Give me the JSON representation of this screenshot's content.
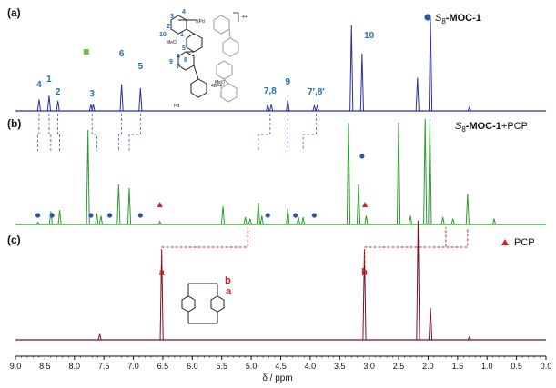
{
  "figure": {
    "panels": [
      {
        "id": "a",
        "label": "(a)",
        "legend_prefix": "S",
        "legend_sub": "8",
        "legend_suffix": "-MOC-1",
        "legend_marker": "blue-circle",
        "peak_labels": [
          {
            "text": "4",
            "ppm": 8.6
          },
          {
            "text": "1",
            "ppm": 8.43
          },
          {
            "text": "2",
            "ppm": 8.28
          },
          {
            "text": "3",
            "ppm": 7.7
          },
          {
            "text": "6",
            "ppm": 7.2
          },
          {
            "text": "5",
            "ppm": 6.88
          },
          {
            "text": "7,8",
            "ppm": 4.68
          },
          {
            "text": "9",
            "ppm": 4.38
          },
          {
            "text": "7′,8′",
            "ppm": 3.9
          },
          {
            "text": "10",
            "ppm": 3.0
          }
        ],
        "structure": {
          "charge": "4+",
          "counterion": "4BF4⁻",
          "metal": "Pd",
          "substituent": "MeO",
          "numbers": [
            "1",
            "2",
            "3",
            "4",
            "5",
            "6",
            "7",
            "8",
            "9",
            "10"
          ]
        }
      },
      {
        "id": "b",
        "label": "(b)",
        "legend_prefix": "S",
        "legend_sub": "8",
        "legend_suffix": "-MOC-1",
        "legend_extra": "+PCP"
      },
      {
        "id": "c",
        "label": "(c)",
        "legend_text": "PCP",
        "legend_marker": "red-triangle",
        "peak_labels": [
          {
            "text": "a",
            "ppm": 6.52
          },
          {
            "text": "b",
            "ppm": 3.08
          }
        ],
        "structure": {
          "labels": [
            "a",
            "b"
          ]
        }
      }
    ],
    "colors": {
      "panel_a": "#2a2fa0",
      "panel_b": "#2e9a2e",
      "panel_c": "#7a1020",
      "label_blue": "#1e6fb8",
      "red": "#d41f1f",
      "marker_blue": "#2f56a6",
      "green_marker": "#6cc04a"
    }
  },
  "chart_data": {
    "type": "line",
    "xlabel": "δ / ppm",
    "xlim": [
      9.0,
      0.0
    ],
    "x_reversed": true,
    "xticks": [
      "9.0",
      "8.5",
      "8.0",
      "7.5",
      "7.0",
      "6.5",
      "6.0",
      "5.5",
      "5.0",
      "4.5",
      "4.0",
      "3.5",
      "3.0",
      "2.5",
      "2.0",
      "1.5",
      "1.0",
      "0.5",
      "0.0"
    ],
    "series": [
      {
        "panel": "a",
        "color": "#2a2fa0",
        "peaks": [
          {
            "ppm": 8.6,
            "h": 0.18
          },
          {
            "ppm": 8.43,
            "h": 0.24
          },
          {
            "ppm": 8.28,
            "h": 0.16
          },
          {
            "ppm": 7.72,
            "h": 0.1
          },
          {
            "ppm": 7.68,
            "h": 0.1
          },
          {
            "ppm": 7.2,
            "h": 0.42
          },
          {
            "ppm": 6.88,
            "h": 0.36
          },
          {
            "ppm": 4.72,
            "h": 0.1
          },
          {
            "ppm": 4.66,
            "h": 0.1
          },
          {
            "ppm": 4.38,
            "h": 0.17
          },
          {
            "ppm": 3.93,
            "h": 0.08
          },
          {
            "ppm": 3.88,
            "h": 0.08
          },
          {
            "ppm": 3.3,
            "h": 1.35
          },
          {
            "ppm": 3.12,
            "h": 0.9
          },
          {
            "ppm": 2.18,
            "h": 0.52
          },
          {
            "ppm": 1.96,
            "h": 1.45
          },
          {
            "ppm": 1.3,
            "h": 0.06
          }
        ]
      },
      {
        "panel": "b",
        "color": "#2e9a2e",
        "peaks": [
          {
            "ppm": 8.62,
            "h": 0.03
          },
          {
            "ppm": 8.4,
            "h": 0.18
          },
          {
            "ppm": 8.25,
            "h": 0.2
          },
          {
            "ppm": 7.77,
            "h": 1.3
          },
          {
            "ppm": 7.62,
            "h": 0.15
          },
          {
            "ppm": 7.55,
            "h": 0.12
          },
          {
            "ppm": 7.25,
            "h": 0.55
          },
          {
            "ppm": 7.07,
            "h": 0.5
          },
          {
            "ppm": 6.55,
            "h": 0.04
          },
          {
            "ppm": 5.48,
            "h": 0.25
          },
          {
            "ppm": 5.1,
            "h": 0.1
          },
          {
            "ppm": 5.02,
            "h": 0.08
          },
          {
            "ppm": 4.88,
            "h": 0.3
          },
          {
            "ppm": 4.82,
            "h": 0.12
          },
          {
            "ppm": 4.38,
            "h": 0.22
          },
          {
            "ppm": 4.2,
            "h": 0.1
          },
          {
            "ppm": 4.12,
            "h": 0.1
          },
          {
            "ppm": 3.35,
            "h": 1.4
          },
          {
            "ppm": 3.18,
            "h": 0.55
          },
          {
            "ppm": 3.05,
            "h": 0.12
          },
          {
            "ppm": 2.5,
            "h": 1.4
          },
          {
            "ppm": 2.3,
            "h": 0.12
          },
          {
            "ppm": 2.05,
            "h": 1.45
          },
          {
            "ppm": 1.97,
            "h": 1.45
          },
          {
            "ppm": 1.75,
            "h": 0.1
          },
          {
            "ppm": 1.58,
            "h": 0.08
          },
          {
            "ppm": 1.33,
            "h": 0.42
          },
          {
            "ppm": 0.88,
            "h": 0.08
          }
        ]
      },
      {
        "panel": "c",
        "color": "#7a1020",
        "peaks": [
          {
            "ppm": 7.57,
            "h": 0.04
          },
          {
            "ppm": 6.52,
            "h": 0.62
          },
          {
            "ppm": 3.08,
            "h": 0.62
          },
          {
            "ppm": 2.17,
            "h": 0.82
          },
          {
            "ppm": 1.96,
            "h": 0.22
          },
          {
            "ppm": 1.3,
            "h": 0.02
          }
        ]
      }
    ],
    "markers": {
      "blue_circles": [
        8.62,
        8.38,
        7.72,
        7.4,
        6.88,
        4.72,
        4.25,
        3.93,
        3.12
      ],
      "red_triangles": [
        6.55,
        3.07
      ],
      "green_square": 7.8
    },
    "correlations_blue": [
      {
        "from": 8.6,
        "to": 8.62
      },
      {
        "from": 8.43,
        "to": 8.4
      },
      {
        "from": 8.28,
        "to": 8.25
      },
      {
        "from": 7.7,
        "to": 7.62
      },
      {
        "from": 7.2,
        "to": 7.25
      },
      {
        "from": 6.88,
        "to": 7.07
      },
      {
        "from": 4.68,
        "to": 4.88
      },
      {
        "from": 4.38,
        "to": 4.38
      },
      {
        "from": 3.9,
        "to": 4.12
      }
    ],
    "correlations_red": [
      {
        "from": 6.52,
        "to": 5.06
      },
      {
        "from": 3.08,
        "to": 1.33
      },
      {
        "from": 3.08,
        "to": 1.7
      }
    ]
  }
}
